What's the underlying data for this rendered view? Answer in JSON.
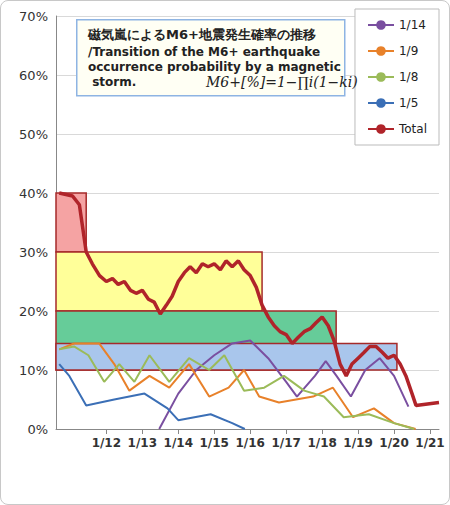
{
  "chart_data": {
    "type": "line",
    "title": "磁気嵐によるM6+地震発生確率の推移",
    "subtitle": "/Transition of the M6+ earthquake occurrence probability by a magnetic storm.",
    "annotation": "M6+[%]=1−∏i(1−ki)",
    "xlim": [
      10.6,
      21.25
    ],
    "xticks": [
      {
        "value": 12,
        "label": "1/12"
      },
      {
        "value": 13,
        "label": "1/13"
      },
      {
        "value": 14,
        "label": "1/14"
      },
      {
        "value": 15,
        "label": "1/15"
      },
      {
        "value": 16,
        "label": "1/16"
      },
      {
        "value": 17,
        "label": "1/17"
      },
      {
        "value": 18,
        "label": "1/18"
      },
      {
        "value": 19,
        "label": "1/19"
      },
      {
        "value": 20,
        "label": "1/20"
      },
      {
        "value": 21,
        "label": "1/21"
      }
    ],
    "ylim": [
      0,
      70
    ],
    "yticks": [
      {
        "value": 0,
        "label": "0%"
      },
      {
        "value": 10,
        "label": "10%"
      },
      {
        "value": 20,
        "label": "20%"
      },
      {
        "value": 30,
        "label": "30%"
      },
      {
        "value": 40,
        "label": "40%"
      },
      {
        "value": 50,
        "label": "50%"
      },
      {
        "value": 60,
        "label": "60%"
      },
      {
        "value": 70,
        "label": "70%"
      }
    ],
    "grid": true,
    "legend": "top-right",
    "bands": [
      {
        "x": [
          10.6,
          11.44
        ],
        "y": [
          30,
          40
        ],
        "color": "#f5a3a3"
      },
      {
        "x": [
          10.6,
          16.33
        ],
        "y": [
          20,
          30
        ],
        "color": "#ffff99"
      },
      {
        "x": [
          10.6,
          18.39
        ],
        "y": [
          10,
          20
        ],
        "color": "#66cc99"
      },
      {
        "x": [
          10.6,
          20.08
        ],
        "y": [
          10,
          14.5
        ],
        "color": "#a9c6ec"
      }
    ],
    "series": [
      {
        "name": "1/14",
        "color": "#7a4fa0",
        "line_style": "solid",
        "x": [
          13.47,
          14.0,
          14.5,
          15.0,
          15.5,
          16.0,
          16.5,
          17.0,
          17.3,
          17.8,
          18.1,
          18.4,
          18.8,
          19.2,
          19.6,
          20.0,
          20.4
        ],
        "values": [
          0,
          6,
          10,
          12.5,
          14.5,
          15,
          12,
          8,
          5.5,
          9,
          11.5,
          9,
          5.5,
          10,
          12,
          9,
          3.8
        ]
      },
      {
        "name": "1/9",
        "color": "#e8812a",
        "line_style": "solid",
        "x": [
          10.69,
          11.1,
          11.8,
          12.22,
          12.64,
          13.2,
          13.75,
          14.3,
          14.86,
          15.4,
          15.83,
          16.25,
          16.8,
          17.75,
          18.3,
          18.86,
          19.44,
          20.0,
          20.6
        ],
        "values": [
          13.5,
          14.5,
          14.5,
          11,
          6.5,
          9,
          7,
          11,
          5.5,
          7,
          10,
          5.5,
          4.5,
          5.5,
          7,
          2,
          3.5,
          1,
          0
        ]
      },
      {
        "name": "1/8",
        "color": "#9bbb59",
        "line_style": "solid",
        "x": [
          10.69,
          11.1,
          11.5,
          11.94,
          12.36,
          12.78,
          13.2,
          13.75,
          14.3,
          14.86,
          15.28,
          15.83,
          16.39,
          16.94,
          17.5,
          18.05,
          18.6,
          19.3,
          20.0,
          20.56
        ],
        "values": [
          13.5,
          14,
          12.5,
          8,
          11,
          8,
          12.5,
          8,
          12,
          10,
          12.5,
          6.5,
          7,
          9,
          6.5,
          5.5,
          2,
          2.5,
          1,
          0
        ]
      },
      {
        "name": "1/5",
        "color": "#3b6fb6",
        "line_style": "solid",
        "x": [
          10.69,
          10.97,
          11.44,
          12.22,
          13.06,
          13.7,
          14.0,
          14.9,
          15.5,
          15.85
        ],
        "values": [
          11,
          9,
          4,
          5,
          6,
          3.5,
          1.5,
          2.5,
          1,
          0
        ]
      },
      {
        "name": "Total",
        "color": "#b0242a",
        "line_style": "thick",
        "x": [
          10.69,
          11.06,
          11.25,
          11.44,
          11.61,
          11.81,
          12.0,
          12.17,
          12.33,
          12.5,
          12.67,
          12.83,
          13.0,
          13.17,
          13.33,
          13.5,
          13.67,
          13.83,
          14.0,
          14.17,
          14.33,
          14.5,
          14.67,
          14.83,
          15.0,
          15.17,
          15.33,
          15.5,
          15.67,
          15.83,
          16.0,
          16.17,
          16.33,
          16.5,
          16.67,
          16.83,
          17.0,
          17.17,
          17.33,
          17.5,
          17.67,
          17.83,
          18.0,
          18.17,
          18.33,
          18.5,
          18.67,
          18.83,
          19.0,
          19.17,
          19.33,
          19.5,
          19.67,
          19.83,
          20.0,
          20.17,
          20.33,
          20.5,
          20.61,
          21.25
        ],
        "values": [
          40,
          39.5,
          38,
          30,
          28,
          26,
          25,
          25.5,
          24.5,
          25,
          23.5,
          23,
          23.5,
          22,
          21.5,
          19.5,
          21,
          22.5,
          25,
          26.5,
          27.5,
          26.5,
          28,
          27.5,
          28,
          27,
          28.5,
          27.5,
          28.5,
          27,
          26,
          24,
          21,
          19,
          17.5,
          16.5,
          16,
          14.5,
          15.5,
          16.5,
          17,
          18,
          19,
          17.5,
          15,
          11,
          9,
          11,
          12,
          13,
          14,
          14,
          13,
          12,
          12.5,
          11,
          9,
          6,
          4,
          4.5
        ]
      }
    ]
  }
}
